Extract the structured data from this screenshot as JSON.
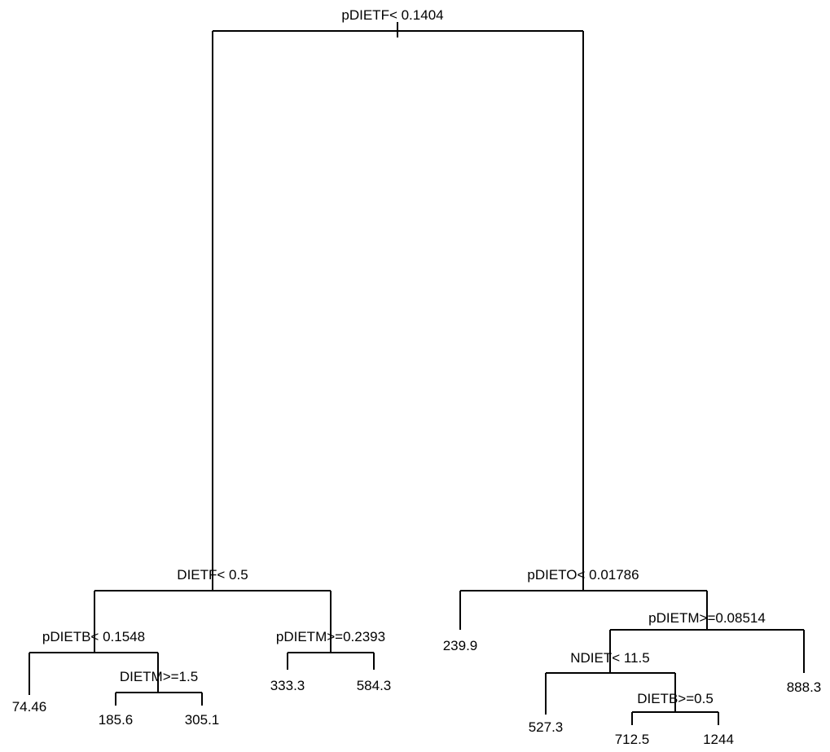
{
  "tree": {
    "root": {
      "label": "pDIETF< 0.1404",
      "left": {
        "label": "DIETF< 0.5",
        "left": {
          "label": "pDIETB< 0.1548",
          "left": {
            "leaf": "74.46"
          },
          "right": {
            "label": "DIETM>=1.5",
            "left": {
              "leaf": "185.6"
            },
            "right": {
              "leaf": "305.1"
            }
          }
        },
        "right": {
          "label": "pDIETM>=0.2393",
          "left": {
            "leaf": "333.3"
          },
          "right": {
            "leaf": "584.3"
          }
        }
      },
      "right": {
        "label": "pDIETO< 0.01786",
        "left": {
          "leaf": "239.9"
        },
        "right": {
          "label": "pDIETM>=0.08514",
          "left": {
            "label": "NDIET< 11.5",
            "left": {
              "leaf": "527.3"
            },
            "right": {
              "label": "DIETB>=0.5",
              "left": {
                "leaf": "712.5"
              },
              "right": {
                "leaf": "1244"
              }
            }
          },
          "right": {
            "leaf": "888.3"
          }
        }
      }
    }
  }
}
